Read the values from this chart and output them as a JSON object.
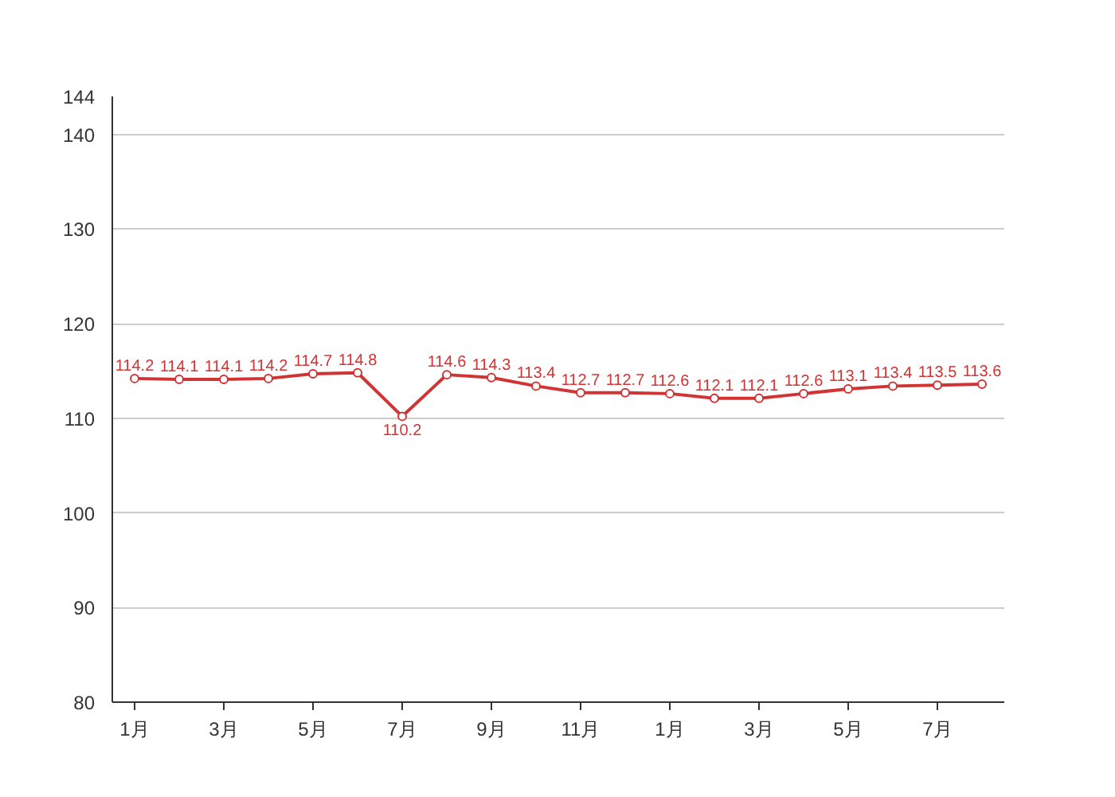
{
  "chart_data": {
    "type": "line",
    "categories": [
      "1月",
      null,
      "3月",
      null,
      "5月",
      null,
      "7月",
      null,
      "9月",
      null,
      "11月",
      null,
      "1月",
      null,
      "3月",
      null,
      "5月",
      null,
      "7月",
      null
    ],
    "series": [
      {
        "color": "#d03434",
        "values": [
          114.2,
          114.1,
          114.1,
          114.2,
          114.7,
          114.8,
          110.2,
          114.6,
          114.3,
          113.4,
          112.7,
          112.7,
          112.6,
          112.1,
          112.1,
          112.6,
          113.1,
          113.4,
          113.5,
          113.6
        ]
      }
    ],
    "ylim": [
      80,
      144
    ],
    "yticks": [
      80,
      90,
      100,
      110,
      120,
      130,
      140,
      144
    ],
    "grid": "y",
    "data_labels": true,
    "marker": "circle",
    "line_style": "solid"
  }
}
